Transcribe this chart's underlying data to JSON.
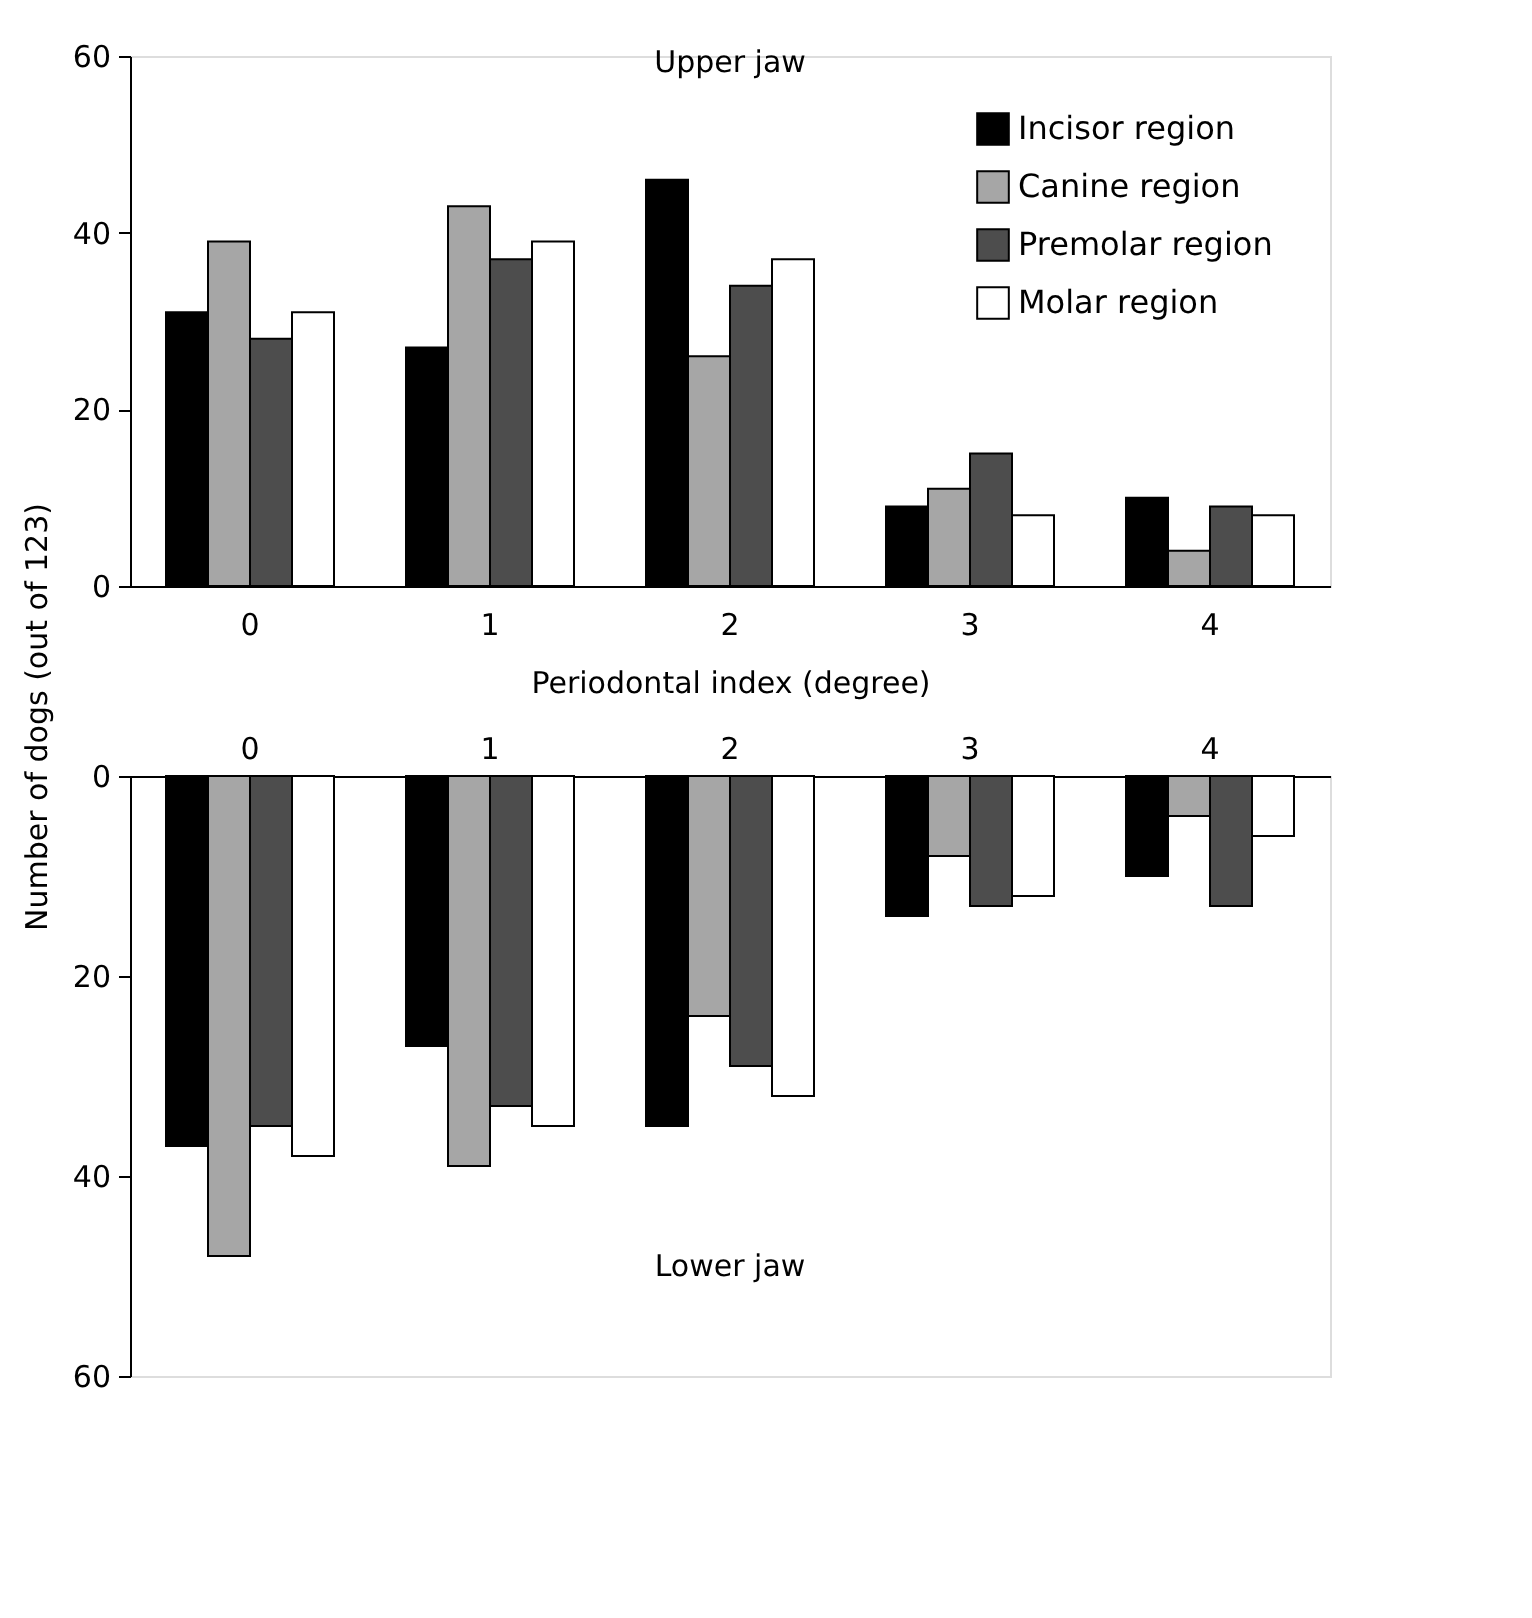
{
  "chart_data": [
    {
      "type": "bar",
      "title": "Upper jaw",
      "xlabel": "Periodontal index (degree)",
      "ylabel": "Number of dogs (out of 123)",
      "categories": [
        "0",
        "1",
        "2",
        "3",
        "4"
      ],
      "ylim": [
        0,
        60
      ],
      "yticks": [
        0,
        20,
        40,
        60
      ],
      "grid": false,
      "legend": "top right",
      "series": [
        {
          "name": "Incisor region",
          "color": "#000000",
          "values": [
            31,
            27,
            46,
            9,
            10
          ]
        },
        {
          "name": "Canine region",
          "color": "#a6a6a6",
          "values": [
            39,
            43,
            26,
            11,
            4
          ]
        },
        {
          "name": "Premolar region",
          "color": "#4d4d4d",
          "values": [
            28,
            37,
            34,
            15,
            9
          ]
        },
        {
          "name": "Molar region",
          "color": "#ffffff",
          "values": [
            31,
            39,
            37,
            8,
            8
          ]
        }
      ]
    },
    {
      "type": "bar",
      "title": "Lower jaw",
      "categories": [
        "0",
        "1",
        "2",
        "3",
        "4"
      ],
      "ylim": [
        60,
        0
      ],
      "yticks": [
        0,
        20,
        40,
        60
      ],
      "grid": false,
      "series": [
        {
          "color": "#000000",
          "values": [
            37,
            27,
            35,
            14,
            10
          ]
        },
        {
          "color": "#a6a6a6",
          "values": [
            48,
            39,
            24,
            8,
            4
          ]
        },
        {
          "color": "#4d4d4d",
          "values": [
            35,
            33,
            29,
            13,
            13
          ]
        },
        {
          "color": "#ffffff",
          "values": [
            38,
            35,
            32,
            12,
            6
          ]
        }
      ]
    }
  ]
}
